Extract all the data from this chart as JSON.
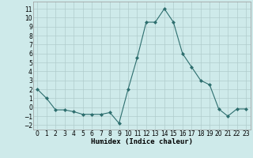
{
  "x": [
    0,
    1,
    2,
    3,
    4,
    5,
    6,
    7,
    8,
    9,
    10,
    11,
    12,
    13,
    14,
    15,
    16,
    17,
    18,
    19,
    20,
    21,
    22,
    23
  ],
  "y": [
    2,
    1,
    -0.3,
    -0.3,
    -0.5,
    -0.8,
    -0.8,
    -0.8,
    -0.6,
    -1.8,
    2,
    5.5,
    9.5,
    9.5,
    11,
    9.5,
    6,
    4.5,
    3,
    2.5,
    -0.2,
    -1,
    -0.2,
    -0.2
  ],
  "line_color": "#2d6e6e",
  "marker": "D",
  "marker_size": 2,
  "bg_color": "#ceeaea",
  "grid_color": "#b0cccc",
  "xlabel": "Humidex (Indice chaleur)",
  "ylim": [
    -2.5,
    11.8
  ],
  "xlim": [
    -0.5,
    23.5
  ],
  "yticks": [
    -2,
    -1,
    0,
    1,
    2,
    3,
    4,
    5,
    6,
    7,
    8,
    9,
    10,
    11
  ],
  "xticks": [
    0,
    1,
    2,
    3,
    4,
    5,
    6,
    7,
    8,
    9,
    10,
    11,
    12,
    13,
    14,
    15,
    16,
    17,
    18,
    19,
    20,
    21,
    22,
    23
  ],
  "label_fontsize": 6.5,
  "tick_fontsize": 5.5
}
